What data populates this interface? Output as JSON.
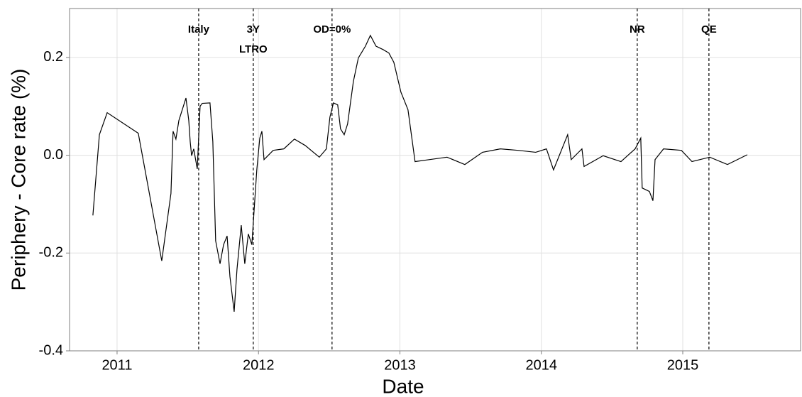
{
  "chart_data": {
    "type": "line",
    "xlabel": "Date",
    "ylabel": "Periphery - Core rate (%)",
    "xlim": [
      2010.664,
      2015.833
    ],
    "xticks": [
      2011,
      2012,
      2013,
      2014,
      2015
    ],
    "ylim": [
      -0.4,
      0.3
    ],
    "yticks": [
      {
        "value": -0.4,
        "label": "-0.4"
      },
      {
        "value": -0.2,
        "label": "-0.2"
      },
      {
        "value": 0,
        "label": "0.0"
      },
      {
        "value": 0.2,
        "label": "0.2"
      }
    ],
    "grid": true,
    "events": [
      {
        "x": 2011.577,
        "label": [
          "Italy"
        ]
      },
      {
        "x": 2011.963,
        "label": [
          "3Y",
          "LTRO"
        ]
      },
      {
        "x": 2012.52,
        "label": [
          "OD=0%"
        ]
      },
      {
        "x": 2014.678,
        "label": [
          "NR"
        ]
      },
      {
        "x": 2015.185,
        "label": [
          "QE"
        ]
      }
    ],
    "series": [
      {
        "color": "#000000",
        "x": [
          2010.829,
          2010.875,
          2010.93,
          2011.15,
          2011.316,
          2011.381,
          2011.396,
          2011.416,
          2011.437,
          2011.487,
          2011.507,
          2011.517,
          2011.527,
          2011.542,
          2011.567,
          2011.587,
          2011.602,
          2011.657,
          2011.677,
          2011.697,
          2011.728,
          2011.753,
          2011.778,
          2011.798,
          2011.828,
          2011.848,
          2011.878,
          2011.903,
          2011.928,
          2011.953,
          2011.968,
          2011.988,
          2012.009,
          2012.024,
          2012.039,
          2012.104,
          2012.179,
          2012.254,
          2012.33,
          2012.43,
          2012.48,
          2012.505,
          2012.53,
          2012.56,
          2012.58,
          2012.606,
          2012.63,
          2012.671,
          2012.706,
          2012.756,
          2012.791,
          2012.831,
          2012.881,
          2012.922,
          2012.957,
          2013.007,
          2013.057,
          2013.107,
          2013.183,
          2013.333,
          2013.459,
          2013.584,
          2013.71,
          2013.835,
          2013.96,
          2014.036,
          2014.086,
          2014.186,
          2014.211,
          2014.287,
          2014.302,
          2014.437,
          2014.563,
          2014.663,
          2014.703,
          2014.713,
          2014.764,
          2014.789,
          2014.804,
          2014.864,
          2014.99,
          2015.065,
          2015.191,
          2015.316,
          2015.456
        ],
        "values": [
          -0.123,
          0.042,
          0.087,
          0.045,
          -0.216,
          -0.078,
          0.049,
          0.033,
          0.071,
          0.117,
          0.071,
          0.028,
          -0.001,
          0.013,
          -0.028,
          0.1,
          0.106,
          0.107,
          0.028,
          -0.175,
          -0.222,
          -0.183,
          -0.165,
          -0.248,
          -0.32,
          -0.233,
          -0.143,
          -0.222,
          -0.161,
          -0.183,
          -0.117,
          -0.03,
          0.035,
          0.049,
          -0.009,
          0.01,
          0.013,
          0.033,
          0.02,
          -0.004,
          0.013,
          0.078,
          0.107,
          0.103,
          0.054,
          0.042,
          0.064,
          0.151,
          0.199,
          0.223,
          0.245,
          0.223,
          0.216,
          0.209,
          0.19,
          0.129,
          0.093,
          -0.013,
          -0.01,
          -0.004,
          -0.019,
          0.006,
          0.013,
          0.01,
          0.006,
          0.013,
          -0.03,
          0.042,
          -0.009,
          0.013,
          -0.023,
          -0.001,
          -0.013,
          0.013,
          0.035,
          -0.067,
          -0.074,
          -0.093,
          -0.009,
          0.013,
          0.01,
          -0.013,
          -0.004,
          -0.019,
          0.001
        ]
      }
    ]
  }
}
